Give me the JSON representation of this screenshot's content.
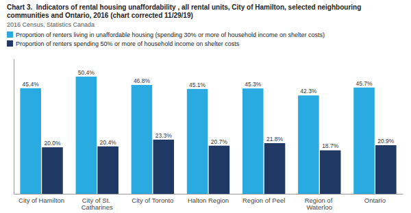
{
  "chart_data": {
    "type": "bar",
    "title": "Chart 3.  Indicators of rental housing unaffordability , all rental units, City of Hamilton, selected neighbouring communities and Ontario, 2016 (chart corrected 11/29/19)",
    "subtitle": "2016 Census, Statistics Canada",
    "categories": [
      "City of Hamilton",
      "City of St.\nCatharines",
      "City of Toronto",
      "Halton Region",
      "Region of Peel",
      "Region of\nWaterloo",
      "Ontario"
    ],
    "series": [
      {
        "name": "Proportion of renters living in unaffordable housing (spending 30% or more of household income on shelter costs)",
        "color": "#29ABE2",
        "values": [
          45.4,
          50.4,
          46.8,
          45.1,
          45.3,
          42.3,
          45.7
        ],
        "value_labels": [
          "45.4%",
          "50.4%",
          "46.8%",
          "45.1%",
          "45.3%",
          "42.3%",
          "45.7%"
        ]
      },
      {
        "name": "Proportion of renters spending 50% or more of household income on shelter costs",
        "color": "#1F3864",
        "values": [
          20.0,
          20.4,
          23.3,
          20.7,
          21.8,
          18.7,
          20.9
        ],
        "value_labels": [
          "20.0%",
          "20.4%",
          "23.3%",
          "20.7%",
          "21.8%",
          "18.7%",
          "20.9%"
        ]
      }
    ],
    "ylim": [
      0,
      58
    ],
    "data_labels": true,
    "tick_labels": "x",
    "grid": false,
    "legend": "top-left"
  }
}
